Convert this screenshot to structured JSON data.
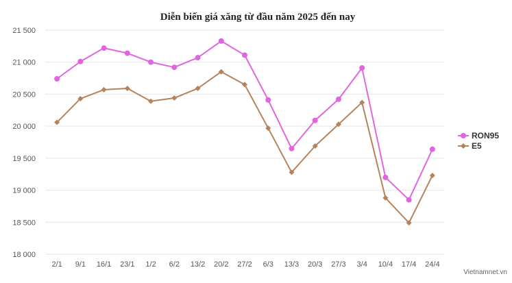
{
  "chart_data": {
    "type": "line",
    "title": "Diễn biến giá xăng từ đầu năm 2025 đến nay",
    "xlabel": "",
    "ylabel": "",
    "categories": [
      "2/1",
      "9/1",
      "16/1",
      "23/1",
      "1/2",
      "6/2",
      "13/2",
      "20/2",
      "27/2",
      "6/3",
      "13/3",
      "20/3",
      "27/3",
      "3/4",
      "10/4",
      "17/4",
      "24/4"
    ],
    "ylim": [
      18000,
      21500
    ],
    "yticks": [
      18000,
      18500,
      19000,
      19500,
      20000,
      20500,
      21000,
      21500
    ],
    "ytick_labels": [
      "18 000",
      "18 500",
      "19 000",
      "19 500",
      "20 000",
      "20 500",
      "21 000",
      "21 500"
    ],
    "grid": true,
    "legend_position": "right",
    "series": [
      {
        "name": "RON95",
        "color": "#e066e0",
        "marker": "circle",
        "values": [
          20740,
          21010,
          21220,
          21140,
          21000,
          20920,
          21070,
          21330,
          21110,
          20410,
          19650,
          20090,
          20420,
          20910,
          19200,
          18850,
          19640
        ]
      },
      {
        "name": "E5",
        "color": "#b5835a",
        "marker": "diamond",
        "values": [
          20060,
          20430,
          20570,
          20590,
          20390,
          20440,
          20590,
          20850,
          20650,
          19970,
          19280,
          19690,
          20030,
          20370,
          18880,
          18490,
          19230
        ]
      }
    ]
  },
  "credit": "Vietnamnet.vn"
}
